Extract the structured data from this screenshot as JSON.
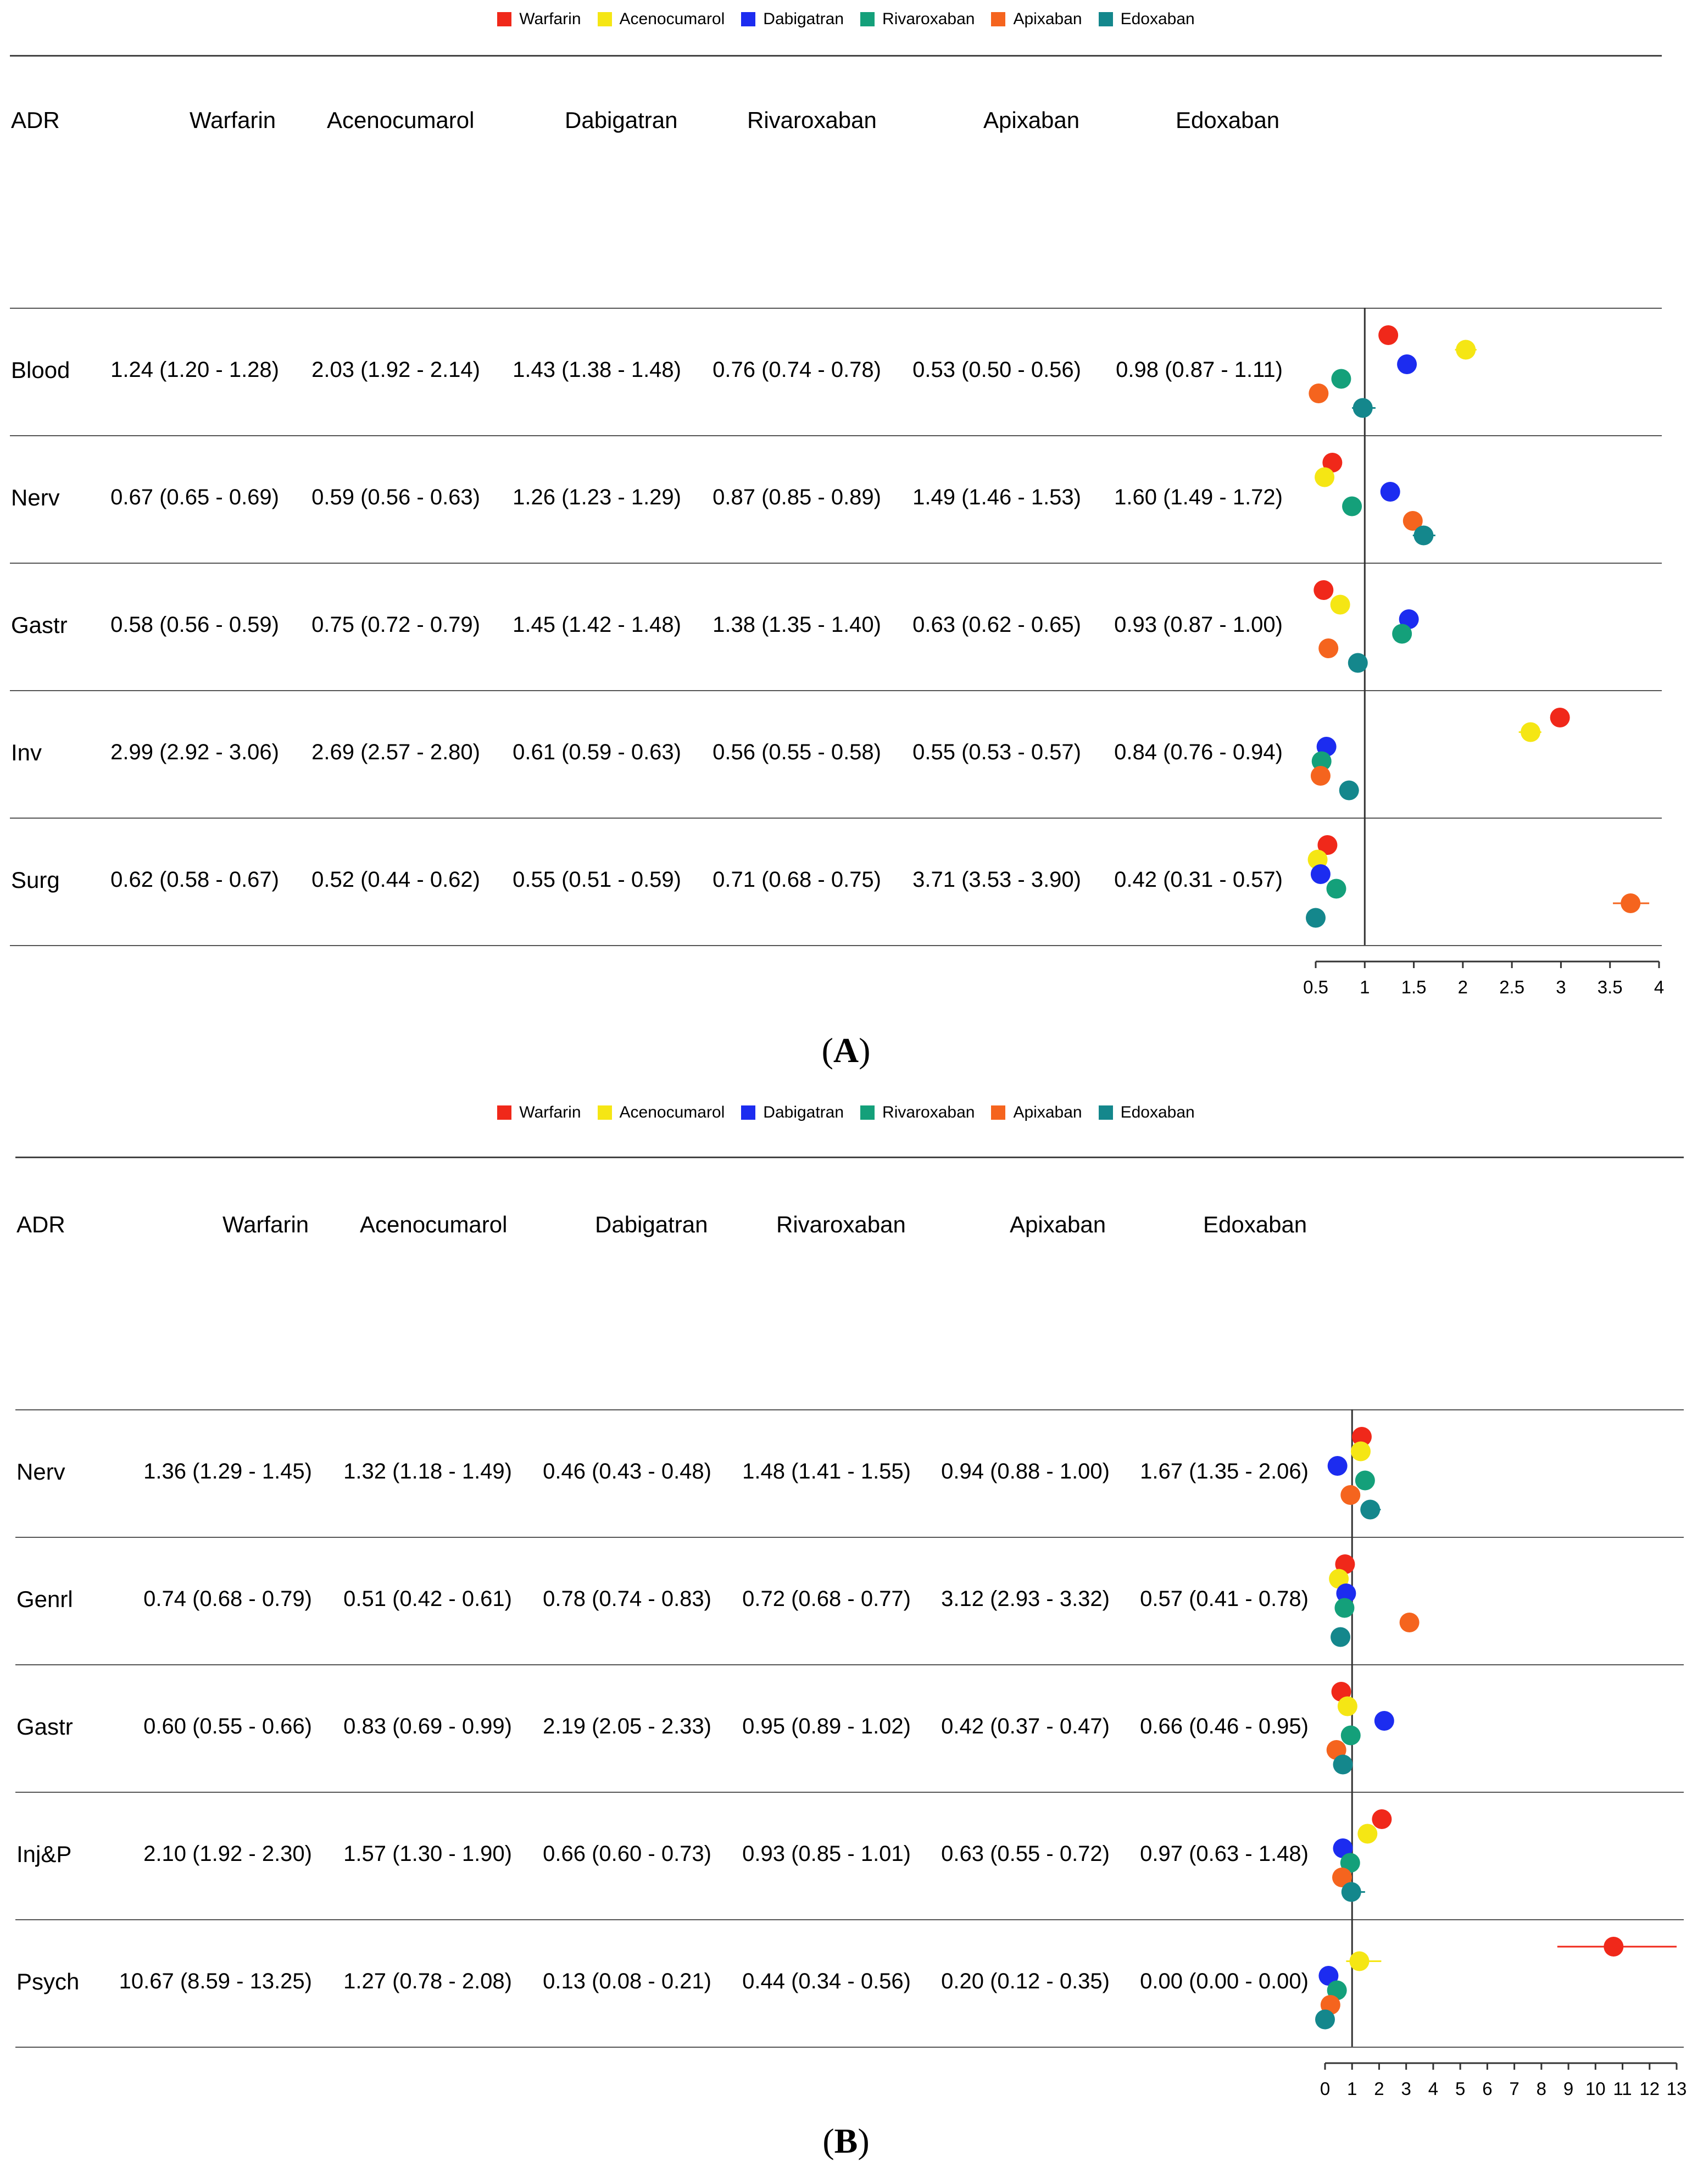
{
  "drugs": [
    "Warfarin",
    "Acenocumarol",
    "Dabigatran",
    "Rivaroxaban",
    "Apixaban",
    "Edoxaban"
  ],
  "colors": [
    "#f0281a",
    "#f5e614",
    "#1c2cf0",
    "#14a07a",
    "#f5641e",
    "#14878c"
  ],
  "header_adr": "ADR",
  "chart_data": [
    {
      "type": "forest",
      "panel_label": "A",
      "header": [
        "ADR",
        "Warfarin",
        "Acenocumarol",
        "Dabigatran",
        "Rivaroxaban",
        "Apixaban",
        "Edoxaban"
      ],
      "xlim": [
        0.5,
        4
      ],
      "ref_line": 1,
      "x_ticks": [
        "0.5",
        "1",
        "1.5",
        "2",
        "2.5",
        "3",
        "3.5",
        "4"
      ],
      "rows": [
        {
          "adr": "Blood",
          "labels": [
            "1.24 (1.20 - 1.28)",
            "2.03 (1.92 - 2.14)",
            "1.43 (1.38 - 1.48)",
            "0.76 (0.74 - 0.78)",
            "0.53 (0.50 - 0.56)",
            "0.98 (0.87 - 1.11)"
          ],
          "estimates": [
            1.24,
            2.03,
            1.43,
            0.76,
            0.53,
            0.98
          ],
          "lower": [
            1.2,
            1.92,
            1.38,
            0.74,
            0.5,
            0.87
          ],
          "upper": [
            1.28,
            2.14,
            1.48,
            0.78,
            0.56,
            1.11
          ]
        },
        {
          "adr": "Nerv",
          "labels": [
            "0.67 (0.65 - 0.69)",
            "0.59 (0.56 - 0.63)",
            "1.26 (1.23 - 1.29)",
            "0.87 (0.85 - 0.89)",
            "1.49 (1.46 - 1.53)",
            "1.60 (1.49 - 1.72)"
          ],
          "estimates": [
            0.67,
            0.59,
            1.26,
            0.87,
            1.49,
            1.6
          ],
          "lower": [
            0.65,
            0.56,
            1.23,
            0.85,
            1.46,
            1.49
          ],
          "upper": [
            0.69,
            0.63,
            1.29,
            0.89,
            1.53,
            1.72
          ]
        },
        {
          "adr": "Gastr",
          "labels": [
            "0.58 (0.56 - 0.59)",
            "0.75 (0.72 - 0.79)",
            "1.45 (1.42 - 1.48)",
            "1.38 (1.35 - 1.40)",
            "0.63 (0.62 - 0.65)",
            "0.93 (0.87 - 1.00)"
          ],
          "estimates": [
            0.58,
            0.75,
            1.45,
            1.38,
            0.63,
            0.93
          ],
          "lower": [
            0.56,
            0.72,
            1.42,
            1.35,
            0.62,
            0.87
          ],
          "upper": [
            0.59,
            0.79,
            1.48,
            1.4,
            0.65,
            1.0
          ]
        },
        {
          "adr": "Inv",
          "labels": [
            "2.99 (2.92 - 3.06)",
            "2.69 (2.57 - 2.80)",
            "0.61 (0.59 - 0.63)",
            "0.56 (0.55 - 0.58)",
            "0.55 (0.53 - 0.57)",
            "0.84 (0.76 - 0.94)"
          ],
          "estimates": [
            2.99,
            2.69,
            0.61,
            0.56,
            0.55,
            0.84
          ],
          "lower": [
            2.92,
            2.57,
            0.59,
            0.55,
            0.53,
            0.76
          ],
          "upper": [
            3.06,
            2.8,
            0.63,
            0.58,
            0.57,
            0.94
          ]
        },
        {
          "adr": "Surg",
          "labels": [
            "0.62 (0.58 - 0.67)",
            "0.52 (0.44 - 0.62)",
            "0.55 (0.51 - 0.59)",
            "0.71 (0.68 - 0.75)",
            "3.71 (3.53 - 3.90)",
            "0.42 (0.31 - 0.57)"
          ],
          "estimates": [
            0.62,
            0.52,
            0.55,
            0.71,
            3.71,
            0.42
          ],
          "lower": [
            0.58,
            0.44,
            0.51,
            0.68,
            3.53,
            0.31
          ],
          "upper": [
            0.67,
            0.62,
            0.59,
            0.75,
            3.9,
            0.57
          ]
        }
      ]
    },
    {
      "type": "forest",
      "panel_label": "B",
      "header": [
        "ADR",
        "Warfarin",
        "Acenocumarol",
        "Dabigatran",
        "Rivaroxaban",
        "Apixaban",
        "Edoxaban"
      ],
      "xlim": [
        0,
        13
      ],
      "ref_line": 1,
      "x_ticks": [
        "0",
        "1",
        "2",
        "3",
        "4",
        "5",
        "6",
        "7",
        "8",
        "9",
        "10",
        "11",
        "12",
        "13"
      ],
      "rows": [
        {
          "adr": "Nerv",
          "labels": [
            "1.36 (1.29 - 1.45)",
            "1.32 (1.18 - 1.49)",
            "0.46 (0.43 - 0.48)",
            "1.48 (1.41 - 1.55)",
            "0.94 (0.88 - 1.00)",
            "1.67 (1.35 - 2.06)"
          ],
          "estimates": [
            1.36,
            1.32,
            0.46,
            1.48,
            0.94,
            1.67
          ],
          "lower": [
            1.29,
            1.18,
            0.43,
            1.41,
            0.88,
            1.35
          ],
          "upper": [
            1.45,
            1.49,
            0.48,
            1.55,
            1.0,
            2.06
          ]
        },
        {
          "adr": "Genrl",
          "labels": [
            "0.74 (0.68 - 0.79)",
            "0.51 (0.42 - 0.61)",
            "0.78 (0.74 - 0.83)",
            "0.72 (0.68 - 0.77)",
            "3.12 (2.93 - 3.32)",
            "0.57 (0.41 - 0.78)"
          ],
          "estimates": [
            0.74,
            0.51,
            0.78,
            0.72,
            3.12,
            0.57
          ],
          "lower": [
            0.68,
            0.42,
            0.74,
            0.68,
            2.93,
            0.41
          ],
          "upper": [
            0.79,
            0.61,
            0.83,
            0.77,
            3.32,
            0.78
          ]
        },
        {
          "adr": "Gastr",
          "labels": [
            "0.60 (0.55 - 0.66)",
            "0.83 (0.69 - 0.99)",
            "2.19 (2.05 - 2.33)",
            "0.95 (0.89 - 1.02)",
            "0.42 (0.37 - 0.47)",
            "0.66 (0.46 - 0.95)"
          ],
          "estimates": [
            0.6,
            0.83,
            2.19,
            0.95,
            0.42,
            0.66
          ],
          "lower": [
            0.55,
            0.69,
            2.05,
            0.89,
            0.37,
            0.46
          ],
          "upper": [
            0.66,
            0.99,
            2.33,
            1.02,
            0.47,
            0.95
          ]
        },
        {
          "adr": "Inj&P",
          "labels": [
            "2.10 (1.92 - 2.30)",
            "1.57 (1.30 - 1.90)",
            "0.66 (0.60 - 0.73)",
            "0.93 (0.85 - 1.01)",
            "0.63 (0.55 - 0.72)",
            "0.97 (0.63 - 1.48)"
          ],
          "estimates": [
            2.1,
            1.57,
            0.66,
            0.93,
            0.63,
            0.97
          ],
          "lower": [
            1.92,
            1.3,
            0.6,
            0.85,
            0.55,
            0.63
          ],
          "upper": [
            2.3,
            1.9,
            0.73,
            1.01,
            0.72,
            1.48
          ]
        },
        {
          "adr": "Psych",
          "labels": [
            "10.67 (8.59 - 13.25)",
            "1.27 (0.78 - 2.08)",
            "0.13 (0.08 - 0.21)",
            "0.44 (0.34 - 0.56)",
            "0.20 (0.12 - 0.35)",
            "0.00 (0.00 - 0.00)"
          ],
          "estimates": [
            10.67,
            1.27,
            0.13,
            0.44,
            0.2,
            0.0
          ],
          "lower": [
            8.59,
            0.78,
            0.08,
            0.34,
            0.12,
            0.0
          ],
          "upper": [
            13.25,
            2.08,
            0.21,
            0.56,
            0.35,
            0.0
          ]
        }
      ]
    }
  ]
}
